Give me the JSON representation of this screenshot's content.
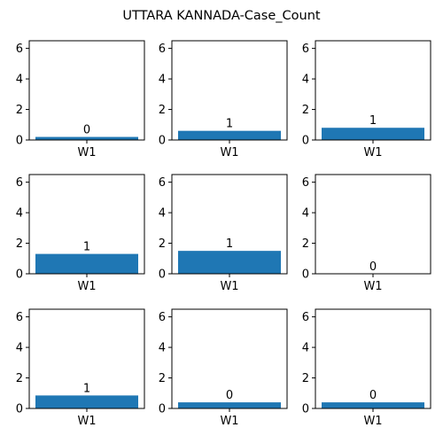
{
  "title": "UTTARA KANNADA-Case_Count",
  "bar_color": "#1f77b4",
  "chart_data": [
    {
      "type": "bar",
      "categories": [
        "W1"
      ],
      "values": [
        0.2
      ],
      "data_labels": [
        "0"
      ],
      "ylim": [
        0,
        6.5
      ],
      "yticks": [
        "0",
        "2",
        "4",
        "6"
      ],
      "grid": false
    },
    {
      "type": "bar",
      "categories": [
        "W1"
      ],
      "values": [
        0.6
      ],
      "data_labels": [
        "1"
      ],
      "ylim": [
        0,
        6.5
      ],
      "yticks": [
        "0",
        "2",
        "4",
        "6"
      ],
      "grid": false
    },
    {
      "type": "bar",
      "categories": [
        "W1"
      ],
      "values": [
        0.8
      ],
      "data_labels": [
        "1"
      ],
      "ylim": [
        0,
        6.5
      ],
      "yticks": [
        "0",
        "2",
        "4",
        "6"
      ],
      "grid": false
    },
    {
      "type": "bar",
      "categories": [
        "W1"
      ],
      "values": [
        1.3
      ],
      "data_labels": [
        "1"
      ],
      "ylim": [
        0,
        6.5
      ],
      "yticks": [
        "0",
        "2",
        "4",
        "6"
      ],
      "grid": false
    },
    {
      "type": "bar",
      "categories": [
        "W1"
      ],
      "values": [
        1.5
      ],
      "data_labels": [
        "1"
      ],
      "ylim": [
        0,
        6.5
      ],
      "yticks": [
        "0",
        "2",
        "4",
        "6"
      ],
      "grid": false
    },
    {
      "type": "bar",
      "categories": [
        "W1"
      ],
      "values": [
        0.0
      ],
      "data_labels": [
        "0"
      ],
      "ylim": [
        0,
        6.5
      ],
      "yticks": [
        "0",
        "2",
        "4",
        "6"
      ],
      "grid": false
    },
    {
      "type": "bar",
      "categories": [
        "W1"
      ],
      "values": [
        0.85
      ],
      "data_labels": [
        "1"
      ],
      "ylim": [
        0,
        6.5
      ],
      "yticks": [
        "0",
        "2",
        "4",
        "6"
      ],
      "grid": false
    },
    {
      "type": "bar",
      "categories": [
        "W1"
      ],
      "values": [
        0.4
      ],
      "data_labels": [
        "0"
      ],
      "ylim": [
        0,
        6.5
      ],
      "yticks": [
        "0",
        "2",
        "4",
        "6"
      ],
      "grid": false
    },
    {
      "type": "bar",
      "categories": [
        "W1"
      ],
      "values": [
        0.4
      ],
      "data_labels": [
        "0"
      ],
      "ylim": [
        0,
        6.5
      ],
      "yticks": [
        "0",
        "2",
        "4",
        "6"
      ],
      "grid": false
    }
  ]
}
